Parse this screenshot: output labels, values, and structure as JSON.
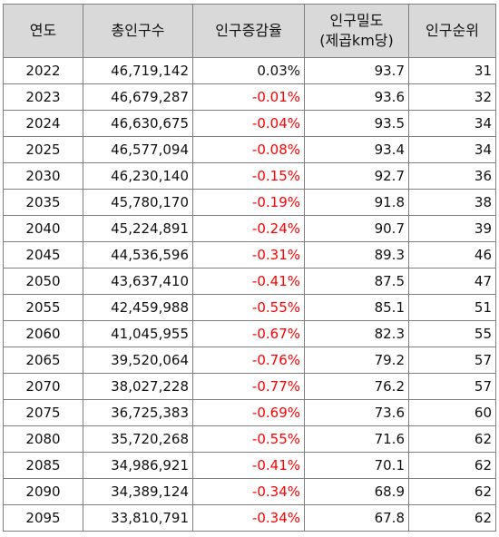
{
  "table": {
    "headers": {
      "year": "연도",
      "population": "총인구수",
      "growth": "인구증감율",
      "density_line1": "인구밀도",
      "density_line2": "(제곱km당)",
      "rank": "인구순위"
    },
    "rows": [
      {
        "year": "2022",
        "population": "46,719,142",
        "growth": "0.03%",
        "density": "93.7",
        "rank": "31"
      },
      {
        "year": "2023",
        "population": "46,679,287",
        "growth": "-0.01%",
        "density": "93.6",
        "rank": "32"
      },
      {
        "year": "2024",
        "population": "46,630,675",
        "growth": "-0.04%",
        "density": "93.5",
        "rank": "34"
      },
      {
        "year": "2025",
        "population": "46,577,094",
        "growth": "-0.08%",
        "density": "93.4",
        "rank": "34"
      },
      {
        "year": "2030",
        "population": "46,230,140",
        "growth": "-0.15%",
        "density": "92.7",
        "rank": "36"
      },
      {
        "year": "2035",
        "population": "45,780,170",
        "growth": "-0.19%",
        "density": "91.8",
        "rank": "38"
      },
      {
        "year": "2040",
        "population": "45,224,891",
        "growth": "-0.24%",
        "density": "90.7",
        "rank": "39"
      },
      {
        "year": "2045",
        "population": "44,536,596",
        "growth": "-0.31%",
        "density": "89.3",
        "rank": "46"
      },
      {
        "year": "2050",
        "population": "43,637,410",
        "growth": "-0.41%",
        "density": "87.5",
        "rank": "47"
      },
      {
        "year": "2055",
        "population": "42,459,988",
        "growth": "-0.55%",
        "density": "85.1",
        "rank": "51"
      },
      {
        "year": "2060",
        "population": "41,045,955",
        "growth": "-0.67%",
        "density": "82.3",
        "rank": "55"
      },
      {
        "year": "2065",
        "population": "39,520,064",
        "growth": "-0.76%",
        "density": "79.2",
        "rank": "57"
      },
      {
        "year": "2070",
        "population": "38,027,228",
        "growth": "-0.77%",
        "density": "76.2",
        "rank": "57"
      },
      {
        "year": "2075",
        "population": "36,725,383",
        "growth": "-0.69%",
        "density": "73.6",
        "rank": "60"
      },
      {
        "year": "2080",
        "population": "35,720,268",
        "growth": "-0.55%",
        "density": "71.6",
        "rank": "62"
      },
      {
        "year": "2085",
        "population": "34,986,921",
        "growth": "-0.41%",
        "density": "70.1",
        "rank": "62"
      },
      {
        "year": "2090",
        "population": "34,389,124",
        "growth": "-0.34%",
        "density": "68.9",
        "rank": "62"
      },
      {
        "year": "2095",
        "population": "33,810,791",
        "growth": "-0.34%",
        "density": "67.8",
        "rank": "62"
      }
    ]
  },
  "colors": {
    "header_bg": "#d9d9d9",
    "negative": "#ff0000",
    "border": "#7f7f7f"
  }
}
